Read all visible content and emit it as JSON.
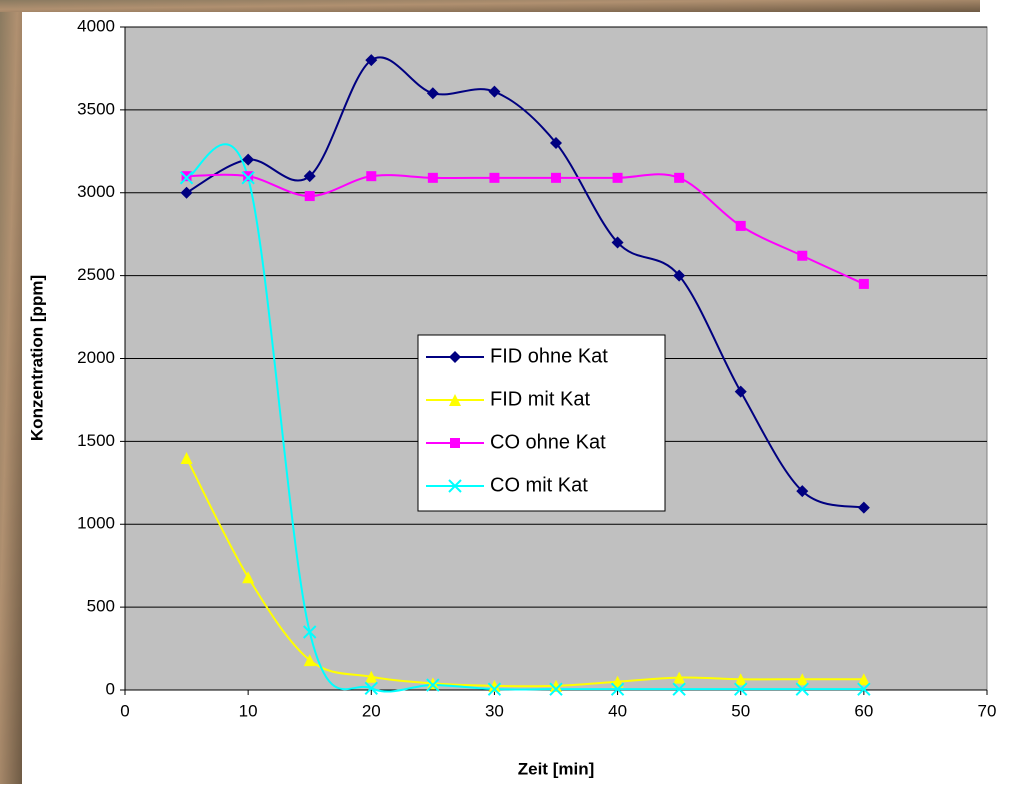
{
  "chart_data": {
    "type": "line",
    "xlabel": "Zeit [min]",
    "ylabel": "Konzentration [ppm]",
    "x": [
      5,
      10,
      15,
      20,
      25,
      30,
      35,
      40,
      45,
      50,
      55,
      60
    ],
    "series": [
      {
        "name": "FID ohne Kat",
        "color": "#000080",
        "marker": "diamond",
        "values": [
          3000,
          3200,
          3100,
          3800,
          3600,
          3610,
          3300,
          2700,
          2500,
          1800,
          1200,
          1100
        ]
      },
      {
        "name": "FID mit Kat",
        "color": "#ffff00",
        "marker": "triangle",
        "values": [
          1400,
          680,
          180,
          80,
          40,
          25,
          25,
          50,
          75,
          65,
          65,
          65
        ]
      },
      {
        "name": "CO ohne Kat",
        "color": "#ff00ff",
        "marker": "square",
        "values": [
          3100,
          3100,
          2980,
          3100,
          3090,
          3090,
          3090,
          3090,
          3090,
          2800,
          2620,
          2450
        ]
      },
      {
        "name": "CO mit Kat",
        "color": "#00ffff",
        "marker": "x",
        "values": [
          3090,
          3090,
          350,
          10,
          30,
          5,
          5,
          5,
          5,
          5,
          5,
          5
        ]
      }
    ],
    "xlim": [
      0,
      70
    ],
    "xticks": [
      0,
      10,
      20,
      30,
      40,
      50,
      60,
      70
    ],
    "ylim": [
      0,
      4000
    ],
    "yticks": [
      0,
      500,
      1000,
      1500,
      2000,
      2500,
      3000,
      3500,
      4000
    ],
    "grid": true,
    "smooth": true
  }
}
